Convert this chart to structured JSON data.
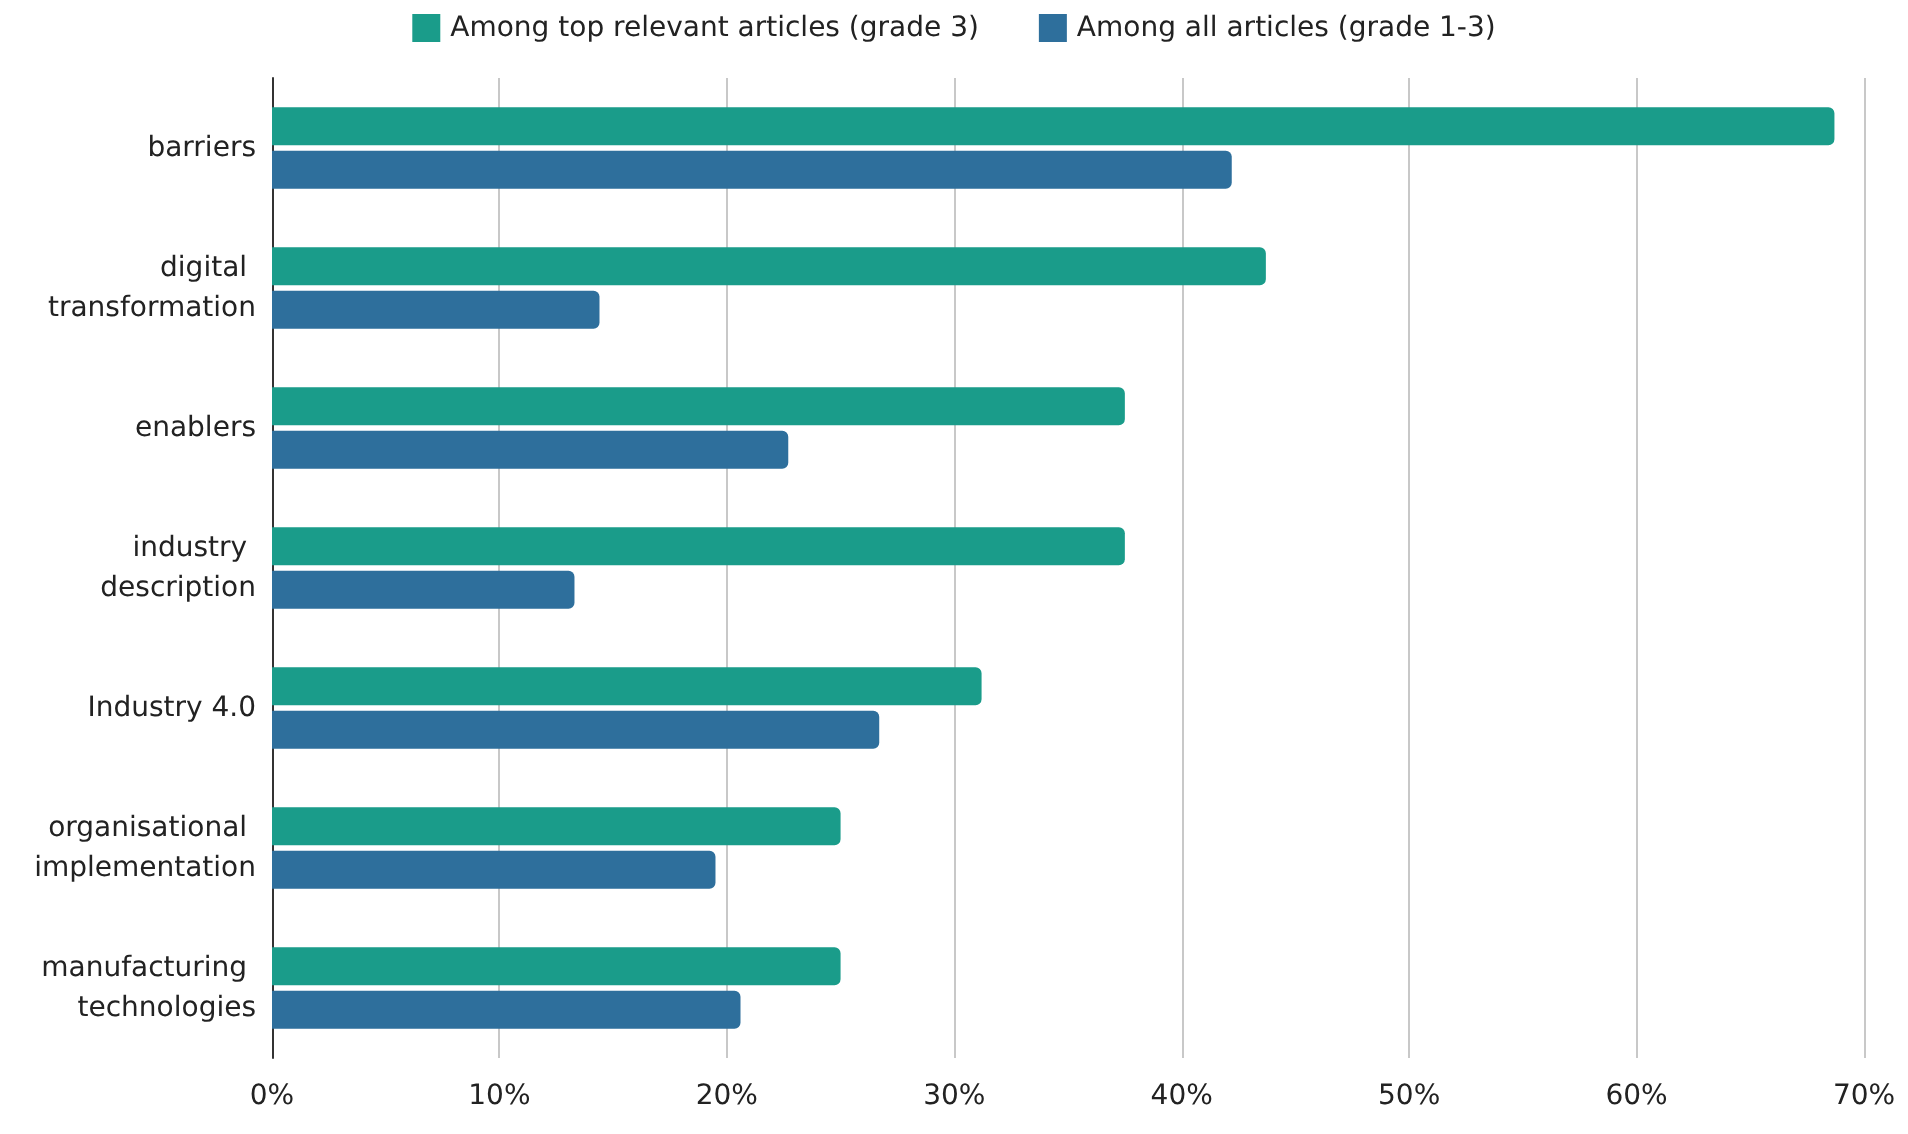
{
  "chart_data": {
    "type": "bar",
    "orientation": "horizontal",
    "categories": [
      "barriers",
      "digital transformation",
      "enablers",
      "industry description",
      "Industry 4.0",
      "organisational implementation",
      "manufacturing technologies"
    ],
    "series": [
      {
        "name": "Among top relevant articles (grade 3)",
        "color": "#1a9c8a",
        "values": [
          68.7,
          43.7,
          37.5,
          37.5,
          31.2,
          25,
          25
        ]
      },
      {
        "name": "Among all articles (grade 1-3)",
        "color": "#2e6f9c",
        "values": [
          42.2,
          14.4,
          22.7,
          13.3,
          26.7,
          19.5,
          20.6
        ]
      }
    ],
    "xlim": [
      0,
      70
    ],
    "xticks": [
      {
        "value": 0,
        "label": "0%"
      },
      {
        "value": 10,
        "label": "10%"
      },
      {
        "value": 20,
        "label": "20%"
      },
      {
        "value": 30,
        "label": "30%"
      },
      {
        "value": 40,
        "label": "40%"
      },
      {
        "value": 50,
        "label": "50%"
      },
      {
        "value": 60,
        "label": "60%"
      },
      {
        "value": 70,
        "label": "70%"
      }
    ],
    "grid": "x",
    "legend": "top"
  }
}
